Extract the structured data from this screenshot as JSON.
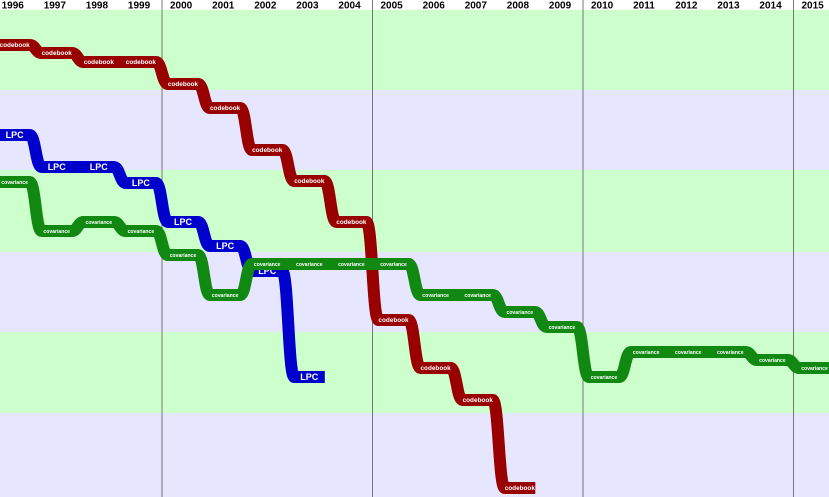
{
  "chart_data": {
    "type": "bump",
    "categories": [
      "1996",
      "1997",
      "1998",
      "1999",
      "2000",
      "2001",
      "2002",
      "2003",
      "2004",
      "2005",
      "2006",
      "2007",
      "2008",
      "2009",
      "2010",
      "2011",
      "2012",
      "2013",
      "2014",
      "2015"
    ],
    "ylim": [
      500,
      0
    ],
    "series": [
      {
        "name": "codebook",
        "color": "#990000",
        "values": [
          45,
          53,
          62,
          62,
          84,
          108,
          150,
          181,
          222,
          320,
          368,
          400,
          488,
          null,
          null,
          null,
          null,
          null,
          null,
          null
        ]
      },
      {
        "name": "LPC",
        "color": "#0000cc",
        "values": [
          135,
          167,
          167,
          183,
          222,
          246,
          271,
          377,
          null,
          null,
          null,
          null,
          null,
          null,
          null,
          null,
          null,
          null,
          null,
          null
        ]
      },
      {
        "name": "covariance",
        "color": "#118811",
        "values": [
          182,
          231,
          222,
          231,
          255,
          295,
          264,
          264,
          264,
          264,
          295,
          295,
          312,
          327,
          377,
          352,
          352,
          352,
          360,
          368
        ]
      }
    ]
  }
}
